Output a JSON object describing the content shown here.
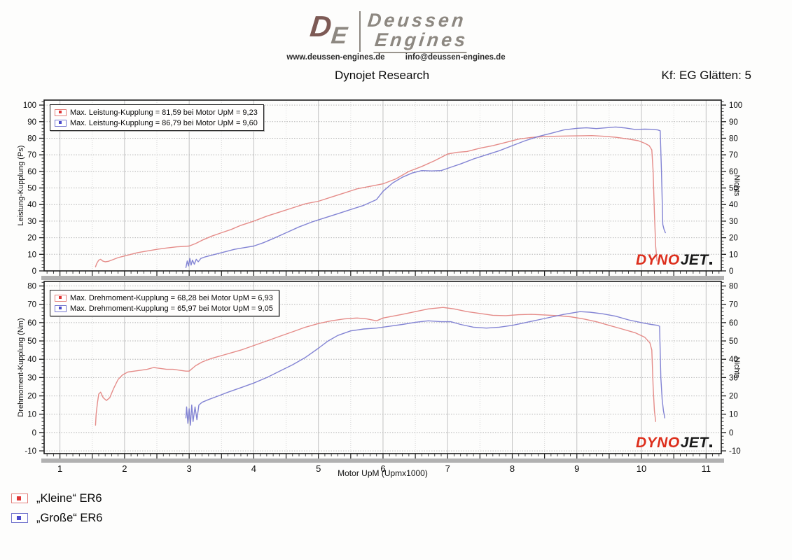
{
  "header": {
    "logo_monogram_d": "D",
    "logo_monogram_e": "E",
    "logo_line1": "Deussen",
    "logo_line2": "Engines",
    "website": "www.deussen-engines.de",
    "email": "info@deussen-engines.de",
    "title": "Dynojet Research",
    "kf_label": "Kf: EG Glätten: 5"
  },
  "colors": {
    "red_curve": "#e2807c",
    "red_dot": "#e03434",
    "blue_curve": "#7577cf",
    "blue_dot": "#4a4acc",
    "watermark_red": "#dd2f1d",
    "watermark_black": "#191919"
  },
  "watermark": {
    "part1": "DYNO",
    "part2": "JET"
  },
  "bottom_legend": [
    {
      "label": "„Kleine“ ER6",
      "color_key": "red"
    },
    {
      "label": "„Große“ ER6",
      "color_key": "blue"
    }
  ],
  "chart_data": [
    {
      "type": "line",
      "title": "",
      "xlabel": "",
      "ylabel": "Leistung-Kupplung (Ps)",
      "ylabel_right": "Nichts",
      "xlim": [
        0.755,
        11.235
      ],
      "ylim": [
        0,
        103
      ],
      "yticks": [
        0,
        10,
        20,
        30,
        40,
        50,
        60,
        70,
        80,
        90,
        100
      ],
      "xticks": [
        1,
        2,
        3,
        4,
        5,
        6,
        7,
        8,
        9,
        10,
        11
      ],
      "grid": true,
      "legend_position": "top-left",
      "legend": [
        "Max. Leistung-Kupplung = 81,59 bei Motor UpM = 9,23",
        "Max. Leistung-Kupplung = 86,79 bei Motor UpM = 9,60"
      ],
      "series": [
        {
          "name": "„Kleine“ ER6",
          "x": [
            1.55,
            1.57,
            1.6,
            1.63,
            1.66,
            1.7,
            1.75,
            1.8,
            1.9,
            2.0,
            2.1,
            2.2,
            2.35,
            2.5,
            2.65,
            2.8,
            3.0,
            3.1,
            3.2,
            3.35,
            3.5,
            3.65,
            3.8,
            4.0,
            4.2,
            4.4,
            4.6,
            4.8,
            5.0,
            5.2,
            5.4,
            5.6,
            5.8,
            6.0,
            6.2,
            6.4,
            6.6,
            6.8,
            7.0,
            7.15,
            7.3,
            7.5,
            7.7,
            7.9,
            8.1,
            8.3,
            8.5,
            8.7,
            8.9,
            9.1,
            9.23,
            9.4,
            9.6,
            9.8,
            9.95,
            10.05,
            10.12,
            10.16,
            10.18,
            10.2,
            10.22,
            10.24
          ],
          "y": [
            2.5,
            4.5,
            6.5,
            7.0,
            6.0,
            5.5,
            5.8,
            6.5,
            8.0,
            9.0,
            10.0,
            11.0,
            12.0,
            13.0,
            13.8,
            14.5,
            15.0,
            16.5,
            18.5,
            21.0,
            23.0,
            25.0,
            27.5,
            30.0,
            33.0,
            35.5,
            38.0,
            40.5,
            42.0,
            44.5,
            47.0,
            49.5,
            51.0,
            52.5,
            55.5,
            60.0,
            63.0,
            66.5,
            70.5,
            71.5,
            72.0,
            74.0,
            75.5,
            77.5,
            79.5,
            80.5,
            81.0,
            81.2,
            81.4,
            81.5,
            81.6,
            81.2,
            80.6,
            79.5,
            78.5,
            77.0,
            75.5,
            73.0,
            60.0,
            35.0,
            15.0,
            6.0
          ]
        },
        {
          "name": "„Große“ ER6",
          "x": [
            2.95,
            2.97,
            2.99,
            3.01,
            3.03,
            3.05,
            3.08,
            3.11,
            3.14,
            3.18,
            3.25,
            3.4,
            3.55,
            3.7,
            3.85,
            4.0,
            4.15,
            4.3,
            4.5,
            4.7,
            4.9,
            5.1,
            5.3,
            5.5,
            5.7,
            5.9,
            6.0,
            6.15,
            6.3,
            6.45,
            6.6,
            6.75,
            6.9,
            7.05,
            7.2,
            7.4,
            7.6,
            7.8,
            8.0,
            8.2,
            8.4,
            8.6,
            8.8,
            9.0,
            9.15,
            9.3,
            9.45,
            9.6,
            9.75,
            9.9,
            10.05,
            10.15,
            10.25,
            10.29,
            10.31,
            10.33,
            10.35,
            10.37
          ],
          "y": [
            2.0,
            6.0,
            3.0,
            7.5,
            3.5,
            6.5,
            4.0,
            7.0,
            5.5,
            7.5,
            8.5,
            10.0,
            11.5,
            13.0,
            14.0,
            15.0,
            17.0,
            19.5,
            23.0,
            26.5,
            29.5,
            32.0,
            34.5,
            37.0,
            39.5,
            43.0,
            48.0,
            53.0,
            56.5,
            59.0,
            60.5,
            60.3,
            60.5,
            62.5,
            64.5,
            67.5,
            70.0,
            72.5,
            75.5,
            78.5,
            81.0,
            83.0,
            85.0,
            86.0,
            86.3,
            85.8,
            86.3,
            86.8,
            86.2,
            85.3,
            85.5,
            85.4,
            85.0,
            84.5,
            60.0,
            28.0,
            25.0,
            23.0
          ]
        }
      ]
    },
    {
      "type": "line",
      "title": "",
      "xlabel": "Motor UpM (Upmx1000)",
      "ylabel": "Drehmoment-Kupplung (Nm)",
      "ylabel_right": "Nichts",
      "xlim": [
        0.755,
        11.235
      ],
      "ylim": [
        -11.5,
        82.5
      ],
      "yticks": [
        -10,
        0,
        10,
        20,
        30,
        40,
        50,
        60,
        70,
        80
      ],
      "xticks": [
        1,
        2,
        3,
        4,
        5,
        6,
        7,
        8,
        9,
        10,
        11
      ],
      "grid": true,
      "legend_position": "top-left",
      "legend": [
        "Max. Drehmoment-Kupplung = 68,28 bei Motor UpM = 6,93",
        "Max. Drehmoment-Kupplung = 65,97 bei Motor UpM = 9,05"
      ],
      "series": [
        {
          "name": "„Kleine“ ER6",
          "x": [
            1.55,
            1.56,
            1.58,
            1.6,
            1.63,
            1.67,
            1.72,
            1.77,
            1.83,
            1.9,
            1.97,
            2.05,
            2.15,
            2.25,
            2.35,
            2.45,
            2.55,
            2.65,
            2.75,
            2.85,
            2.95,
            3.0,
            3.1,
            3.2,
            3.35,
            3.5,
            3.65,
            3.8,
            4.0,
            4.2,
            4.4,
            4.6,
            4.8,
            5.0,
            5.2,
            5.4,
            5.6,
            5.75,
            5.9,
            6.0,
            6.15,
            6.3,
            6.5,
            6.7,
            6.85,
            6.93,
            7.1,
            7.3,
            7.5,
            7.7,
            7.9,
            8.1,
            8.3,
            8.5,
            8.7,
            8.9,
            9.1,
            9.3,
            9.5,
            9.7,
            9.9,
            10.05,
            10.13,
            10.16,
            10.18,
            10.2,
            10.22
          ],
          "y": [
            4,
            10,
            16,
            21,
            22,
            19,
            17.5,
            19,
            24,
            29,
            31.5,
            33,
            33.5,
            34,
            34.5,
            35.5,
            35,
            34.5,
            34.5,
            34,
            33.5,
            33.5,
            36.5,
            38.5,
            40.5,
            42,
            43.5,
            45,
            47.5,
            50,
            52.5,
            55,
            57.5,
            59.5,
            61,
            62,
            62.5,
            62,
            61,
            62.5,
            63.5,
            64.5,
            66,
            67.5,
            68,
            68.3,
            67.5,
            66,
            65,
            64,
            63.8,
            64.3,
            64.5,
            64.2,
            63.8,
            63.2,
            62,
            60.5,
            58.5,
            56.5,
            54.5,
            52,
            49,
            45,
            25,
            12,
            6
          ]
        },
        {
          "name": "„Große“ ER6",
          "x": [
            2.95,
            2.96,
            2.98,
            3.0,
            3.02,
            3.04,
            3.06,
            3.09,
            3.12,
            3.15,
            3.2,
            3.3,
            3.45,
            3.6,
            3.8,
            4.0,
            4.2,
            4.4,
            4.6,
            4.8,
            5.0,
            5.15,
            5.3,
            5.5,
            5.7,
            5.9,
            6.1,
            6.3,
            6.5,
            6.7,
            6.9,
            7.05,
            7.2,
            7.4,
            7.6,
            7.8,
            8.0,
            8.2,
            8.4,
            8.6,
            8.8,
            9.05,
            9.2,
            9.4,
            9.6,
            9.8,
            10.0,
            10.15,
            10.25,
            10.28,
            10.3,
            10.32,
            10.34,
            10.36
          ],
          "y": [
            8,
            14,
            5,
            13,
            4,
            15,
            6,
            14,
            7,
            15,
            16.5,
            18,
            20,
            22,
            24.5,
            27,
            30,
            33.5,
            37,
            41,
            46,
            50,
            53,
            55.5,
            56.5,
            57,
            58,
            59,
            60.2,
            61,
            60.5,
            60.5,
            59,
            57.5,
            57,
            57.5,
            58.5,
            60,
            61.5,
            63,
            64.5,
            66,
            65.7,
            64.8,
            63.5,
            61.5,
            60,
            59,
            58.5,
            58,
            30,
            18,
            12,
            8
          ]
        }
      ]
    }
  ]
}
